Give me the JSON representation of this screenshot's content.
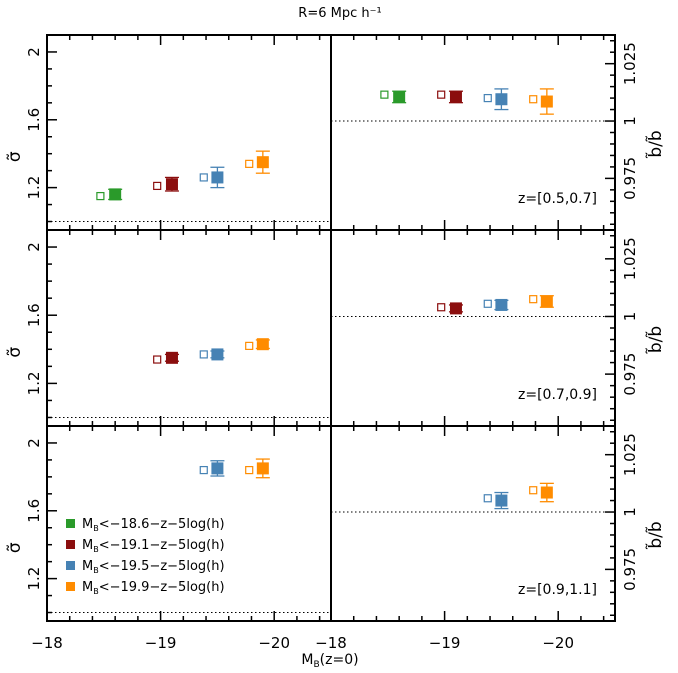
{
  "chart_data": {
    "type": "scatter",
    "title": "R=6 Mpc h⁻¹",
    "xlabel": "M_B(z=0)",
    "xlabel_main": "M",
    "xlabel_sub": "B",
    "xlabel_rest": "(z=0)",
    "left_ylabel": "σ̃",
    "right_ylabel": "b̃/b̃",
    "xlim": [
      -18,
      -20.5
    ],
    "x_ticks": [
      -18,
      -19,
      -20
    ],
    "x_tick_labels": [
      "−18",
      "−19",
      "−20"
    ],
    "right_xlim": [
      -18,
      -20.5
    ],
    "left_ylim": [
      0.95,
      2.1
    ],
    "left_y_ticks": [
      1.2,
      1.6,
      2.0
    ],
    "left_y_tick_labels": [
      "1.2",
      "1.6",
      "2"
    ],
    "left_reference": 1.0,
    "right_ylim": [
      0.9525,
      1.0375
    ],
    "right_y_ticks": [
      0.975,
      1.0,
      1.025
    ],
    "right_y_tick_labels": [
      "0.975",
      "1",
      "1.025"
    ],
    "right_reference": 1.0,
    "legend": {
      "placement": "bottom-left of lowest left panel",
      "entries": [
        {
          "main": "M",
          "sub": "B",
          "rest": "<−18.6−z−5log(h)",
          "color": "#2a9a2a"
        },
        {
          "main": "M",
          "sub": "B",
          "rest": "<−19.1−z−5log(h)",
          "color": "#8b0e0e"
        },
        {
          "main": "M",
          "sub": "B",
          "rest": "<−19.5−z−5log(h)",
          "color": "#4682b4"
        },
        {
          "main": "M",
          "sub": "B",
          "rest": "<−19.9−z−5log(h)",
          "color": "#ff8c00"
        }
      ]
    },
    "series": [
      {
        "key": "m186",
        "color": "#2a9a2a"
      },
      {
        "key": "m191",
        "color": "#8b0e0e"
      },
      {
        "key": "m195",
        "color": "#4682b4"
      },
      {
        "key": "m199",
        "color": "#ff8c00"
      }
    ],
    "panels": [
      {
        "redshift_label": "z=[0.5,0.7]",
        "left": [
          {
            "series": "m186",
            "x": -18.6,
            "y": 1.16,
            "err": 0.03,
            "open_x": -18.47,
            "open_y": 1.15
          },
          {
            "series": "m191",
            "x": -19.1,
            "y": 1.22,
            "err": 0.04,
            "open_x": -18.97,
            "open_y": 1.21
          },
          {
            "series": "m195",
            "x": -19.5,
            "y": 1.26,
            "err": 0.06,
            "open_x": -19.38,
            "open_y": 1.26
          },
          {
            "series": "m199",
            "x": -19.9,
            "y": 1.35,
            "err": 0.065,
            "open_x": -19.78,
            "open_y": 1.34
          }
        ],
        "right": [
          {
            "series": "m186",
            "x": -18.6,
            "y": 1.0105,
            "err": 0.0025,
            "open_x": -18.47,
            "open_y": 1.0115
          },
          {
            "series": "m191",
            "x": -19.1,
            "y": 1.0105,
            "err": 0.0025,
            "open_x": -18.97,
            "open_y": 1.0115
          },
          {
            "series": "m195",
            "x": -19.5,
            "y": 1.0095,
            "err": 0.0045,
            "open_x": -19.38,
            "open_y": 1.01
          },
          {
            "series": "m199",
            "x": -19.9,
            "y": 1.0085,
            "err": 0.0055,
            "open_x": -19.78,
            "open_y": 1.0095
          }
        ]
      },
      {
        "redshift_label": "z=[0.7,0.9]",
        "left": [
          {
            "series": "m191",
            "x": -19.1,
            "y": 1.35,
            "err": 0.02,
            "open_x": -18.97,
            "open_y": 1.34
          },
          {
            "series": "m195",
            "x": -19.5,
            "y": 1.37,
            "err": 0.02,
            "open_x": -19.38,
            "open_y": 1.37
          },
          {
            "series": "m199",
            "x": -19.9,
            "y": 1.43,
            "err": 0.025,
            "open_x": -19.78,
            "open_y": 1.42
          }
        ],
        "right": [
          {
            "series": "m191",
            "x": -19.1,
            "y": 1.0035,
            "err": 0.0015,
            "open_x": -18.97,
            "open_y": 1.004
          },
          {
            "series": "m195",
            "x": -19.5,
            "y": 1.005,
            "err": 0.002,
            "open_x": -19.38,
            "open_y": 1.0055
          },
          {
            "series": "m199",
            "x": -19.9,
            "y": 1.0065,
            "err": 0.0025,
            "open_x": -19.78,
            "open_y": 1.0075
          }
        ]
      },
      {
        "redshift_label": "z=[0.9,1.1]",
        "left": [
          {
            "series": "m195",
            "x": -19.5,
            "y": 1.85,
            "err": 0.045,
            "open_x": -19.38,
            "open_y": 1.84
          },
          {
            "series": "m199",
            "x": -19.9,
            "y": 1.85,
            "err": 0.055,
            "open_x": -19.78,
            "open_y": 1.84
          }
        ],
        "right": [
          {
            "series": "m195",
            "x": -19.5,
            "y": 1.005,
            "err": 0.0035,
            "open_x": -19.38,
            "open_y": 1.006
          },
          {
            "series": "m199",
            "x": -19.9,
            "y": 1.0085,
            "err": 0.004,
            "open_x": -19.78,
            "open_y": 1.0095
          }
        ]
      }
    ]
  }
}
